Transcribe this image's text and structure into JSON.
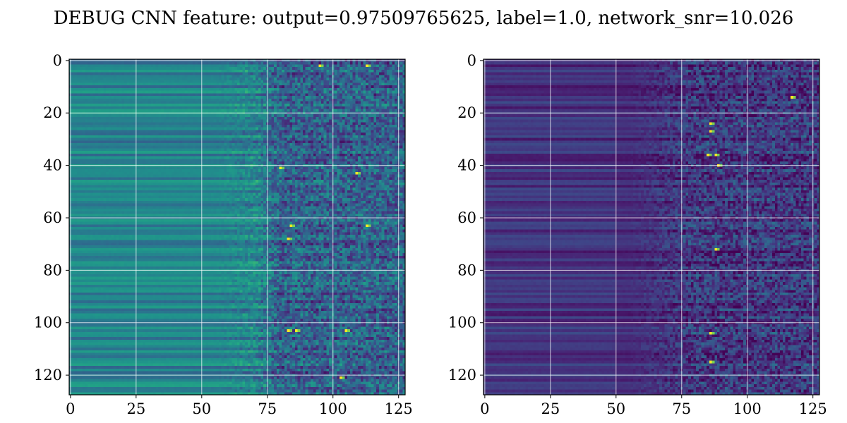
{
  "title": "DEBUG CNN feature: output=0.97509765625, label=1.0, network_snr=10.026",
  "chart_data": [
    {
      "type": "heatmap",
      "colormap": "viridis",
      "rows": 128,
      "cols": 128,
      "xlim": [
        -0.5,
        127.5
      ],
      "ylim": [
        127.5,
        -0.5
      ],
      "x_ticks": [
        0,
        25,
        50,
        75,
        100,
        125
      ],
      "y_ticks": [
        0,
        20,
        40,
        60,
        80,
        100,
        120
      ],
      "grid": true,
      "description_of_pattern": "left half smooth horizontal stripes (teal/green), right half (cols>75) noisy with bright yellow speckles",
      "value_range": [
        0,
        1
      ],
      "hotspots": [
        [
          41,
          80
        ],
        [
          43,
          109
        ],
        [
          63,
          84
        ],
        [
          63,
          113
        ],
        [
          68,
          83
        ],
        [
          103,
          83
        ],
        [
          103,
          86
        ],
        [
          103,
          105
        ],
        [
          121,
          103
        ],
        [
          2,
          95
        ],
        [
          2,
          113
        ]
      ]
    },
    {
      "type": "heatmap",
      "colormap": "viridis",
      "rows": 128,
      "cols": 128,
      "xlim": [
        -0.5,
        127.5
      ],
      "ylim": [
        127.5,
        -0.5
      ],
      "x_ticks": [
        0,
        25,
        50,
        75,
        100,
        125
      ],
      "y_ticks": [
        0,
        20,
        40,
        60,
        80,
        100,
        120
      ],
      "grid": true,
      "description_of_pattern": "mostly dark purple horizontal stripes, noisy region cols>75 with bright speckles around cols 84-90",
      "value_range": [
        0,
        1
      ],
      "hotspots": [
        [
          24,
          86
        ],
        [
          27,
          86
        ],
        [
          36,
          85
        ],
        [
          36,
          88
        ],
        [
          40,
          89
        ],
        [
          72,
          88
        ],
        [
          104,
          86
        ],
        [
          115,
          86
        ],
        [
          14,
          117
        ]
      ]
    }
  ]
}
